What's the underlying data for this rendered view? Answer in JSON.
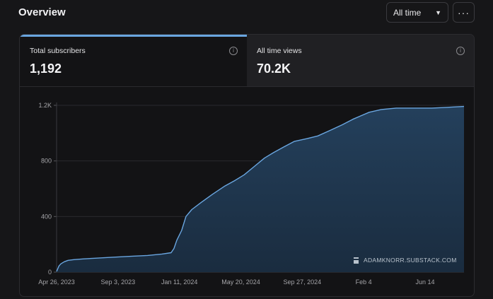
{
  "header": {
    "title": "Overview"
  },
  "range_select": {
    "value": "All time"
  },
  "more_button": {
    "label": "···"
  },
  "stats": [
    {
      "label": "Total subscribers",
      "value": "1,192"
    },
    {
      "label": "All time views",
      "value": "70.2K"
    }
  ],
  "watermark": "ADAMKNORR.SUBSTACK.COM",
  "colors": {
    "accent": "#6aa6e0",
    "area_fill": "#1e3349",
    "background": "#161618"
  },
  "chart_data": {
    "type": "area",
    "title": "",
    "xlabel": "",
    "ylabel": "",
    "ylim": [
      0,
      1200
    ],
    "yticks": [
      0,
      400,
      800,
      1200
    ],
    "ytick_labels": [
      "0",
      "400",
      "800",
      "1.2K"
    ],
    "xtick_labels": [
      "Apr 26, 2023",
      "Sep 3, 2023",
      "Jan 11, 2024",
      "May 20, 2024",
      "Sep 27, 2024",
      "Feb 4",
      "Jun 14"
    ],
    "grid": true,
    "series": [
      {
        "x": [
          "2023-04-26",
          "2023-05-01",
          "2023-05-05",
          "2023-05-12",
          "2023-05-20",
          "2023-06-01",
          "2023-06-20",
          "2023-07-15",
          "2023-08-10",
          "2023-09-03",
          "2023-10-01",
          "2023-11-01",
          "2023-12-01",
          "2023-12-20",
          "2023-12-26",
          "2024-01-01",
          "2024-01-11",
          "2024-01-20",
          "2024-02-01",
          "2024-02-20",
          "2024-03-15",
          "2024-04-10",
          "2024-05-01",
          "2024-05-20",
          "2024-06-10",
          "2024-07-01",
          "2024-07-20",
          "2024-08-10",
          "2024-09-01",
          "2024-09-27",
          "2024-10-20",
          "2024-11-15",
          "2024-12-10",
          "2025-01-01",
          "2025-02-04",
          "2025-03-01",
          "2025-04-01",
          "2025-05-01",
          "2025-06-14",
          "2025-07-15",
          "2025-08-20"
        ],
        "values": [
          5,
          45,
          60,
          75,
          85,
          90,
          95,
          100,
          105,
          110,
          115,
          120,
          130,
          140,
          170,
          230,
          300,
          400,
          450,
          500,
          560,
          620,
          660,
          700,
          760,
          820,
          860,
          900,
          940,
          960,
          980,
          1020,
          1060,
          1100,
          1150,
          1170,
          1180,
          1180,
          1180,
          1185,
          1192
        ]
      }
    ]
  }
}
